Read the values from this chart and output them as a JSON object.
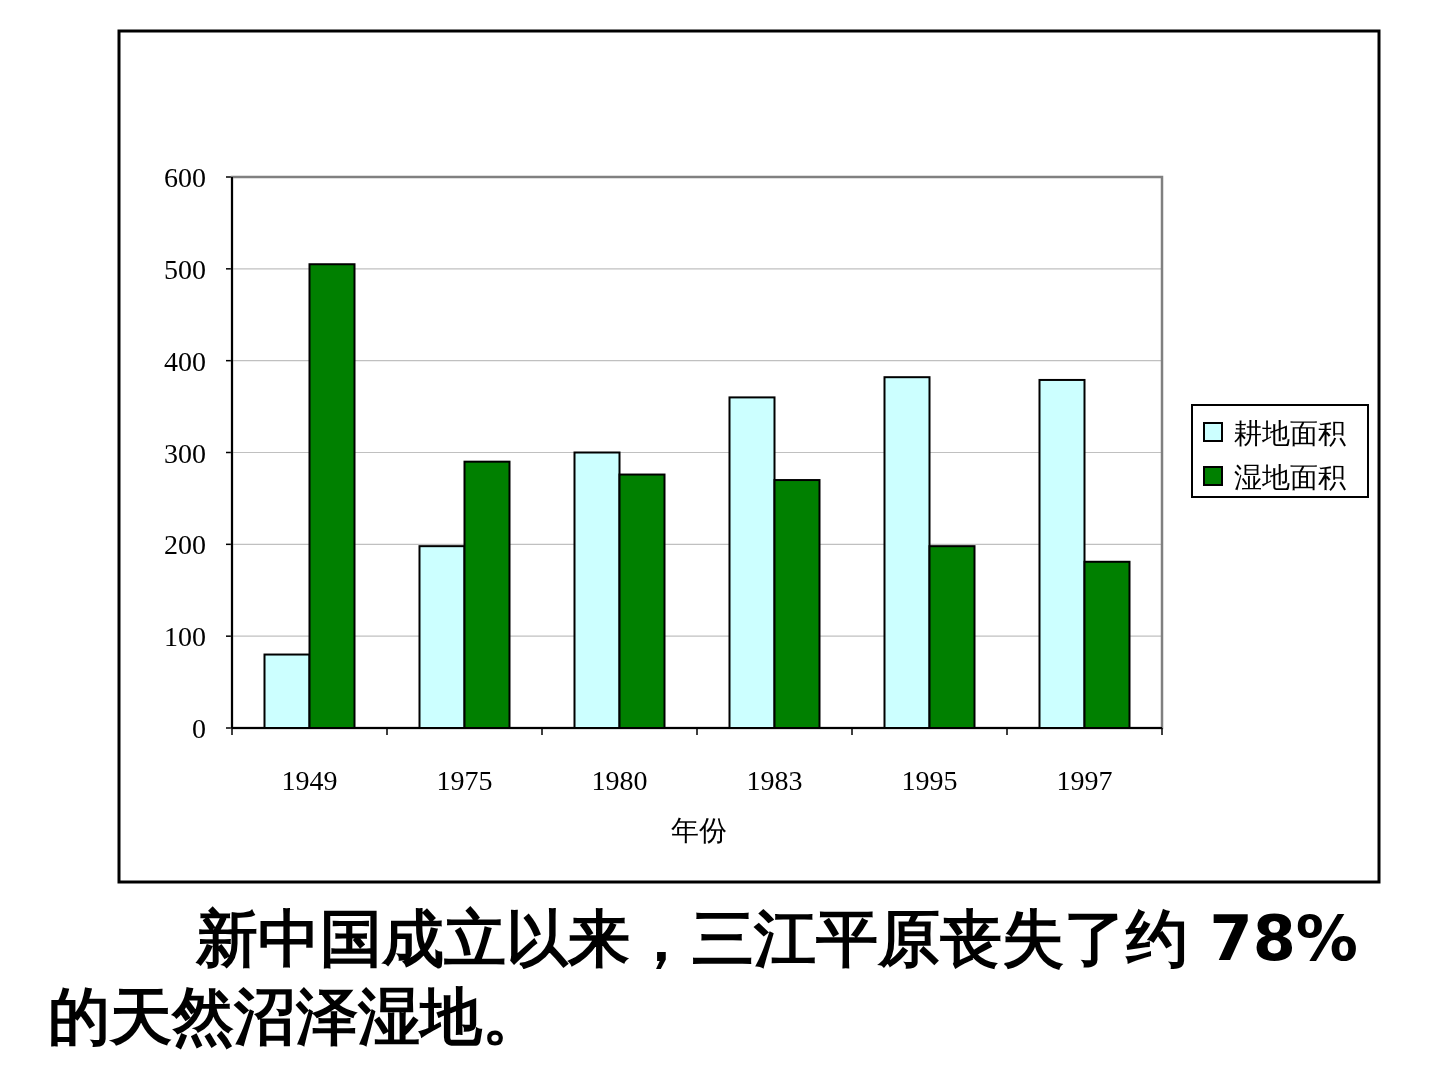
{
  "chart_data": {
    "type": "bar",
    "xlabel": "年份",
    "categories": [
      "1949",
      "1975",
      "1980",
      "1983",
      "1995",
      "1997"
    ],
    "series": [
      {
        "name": "耕地面积",
        "color": "#ccffff",
        "values": [
          80,
          198,
          300,
          360,
          382,
          379
        ]
      },
      {
        "name": "湿地面积",
        "color": "#008000",
        "values": [
          505,
          290,
          276,
          270,
          198,
          181
        ]
      }
    ],
    "ylim": [
      0,
      600
    ],
    "yticks": [
      0,
      100,
      200,
      300,
      400,
      500,
      600
    ],
    "grid": "y",
    "legend": "right",
    "annotations": [
      "新中国成立以来，三江平原丧失了约 78%的天然沼泽湿地。"
    ]
  }
}
